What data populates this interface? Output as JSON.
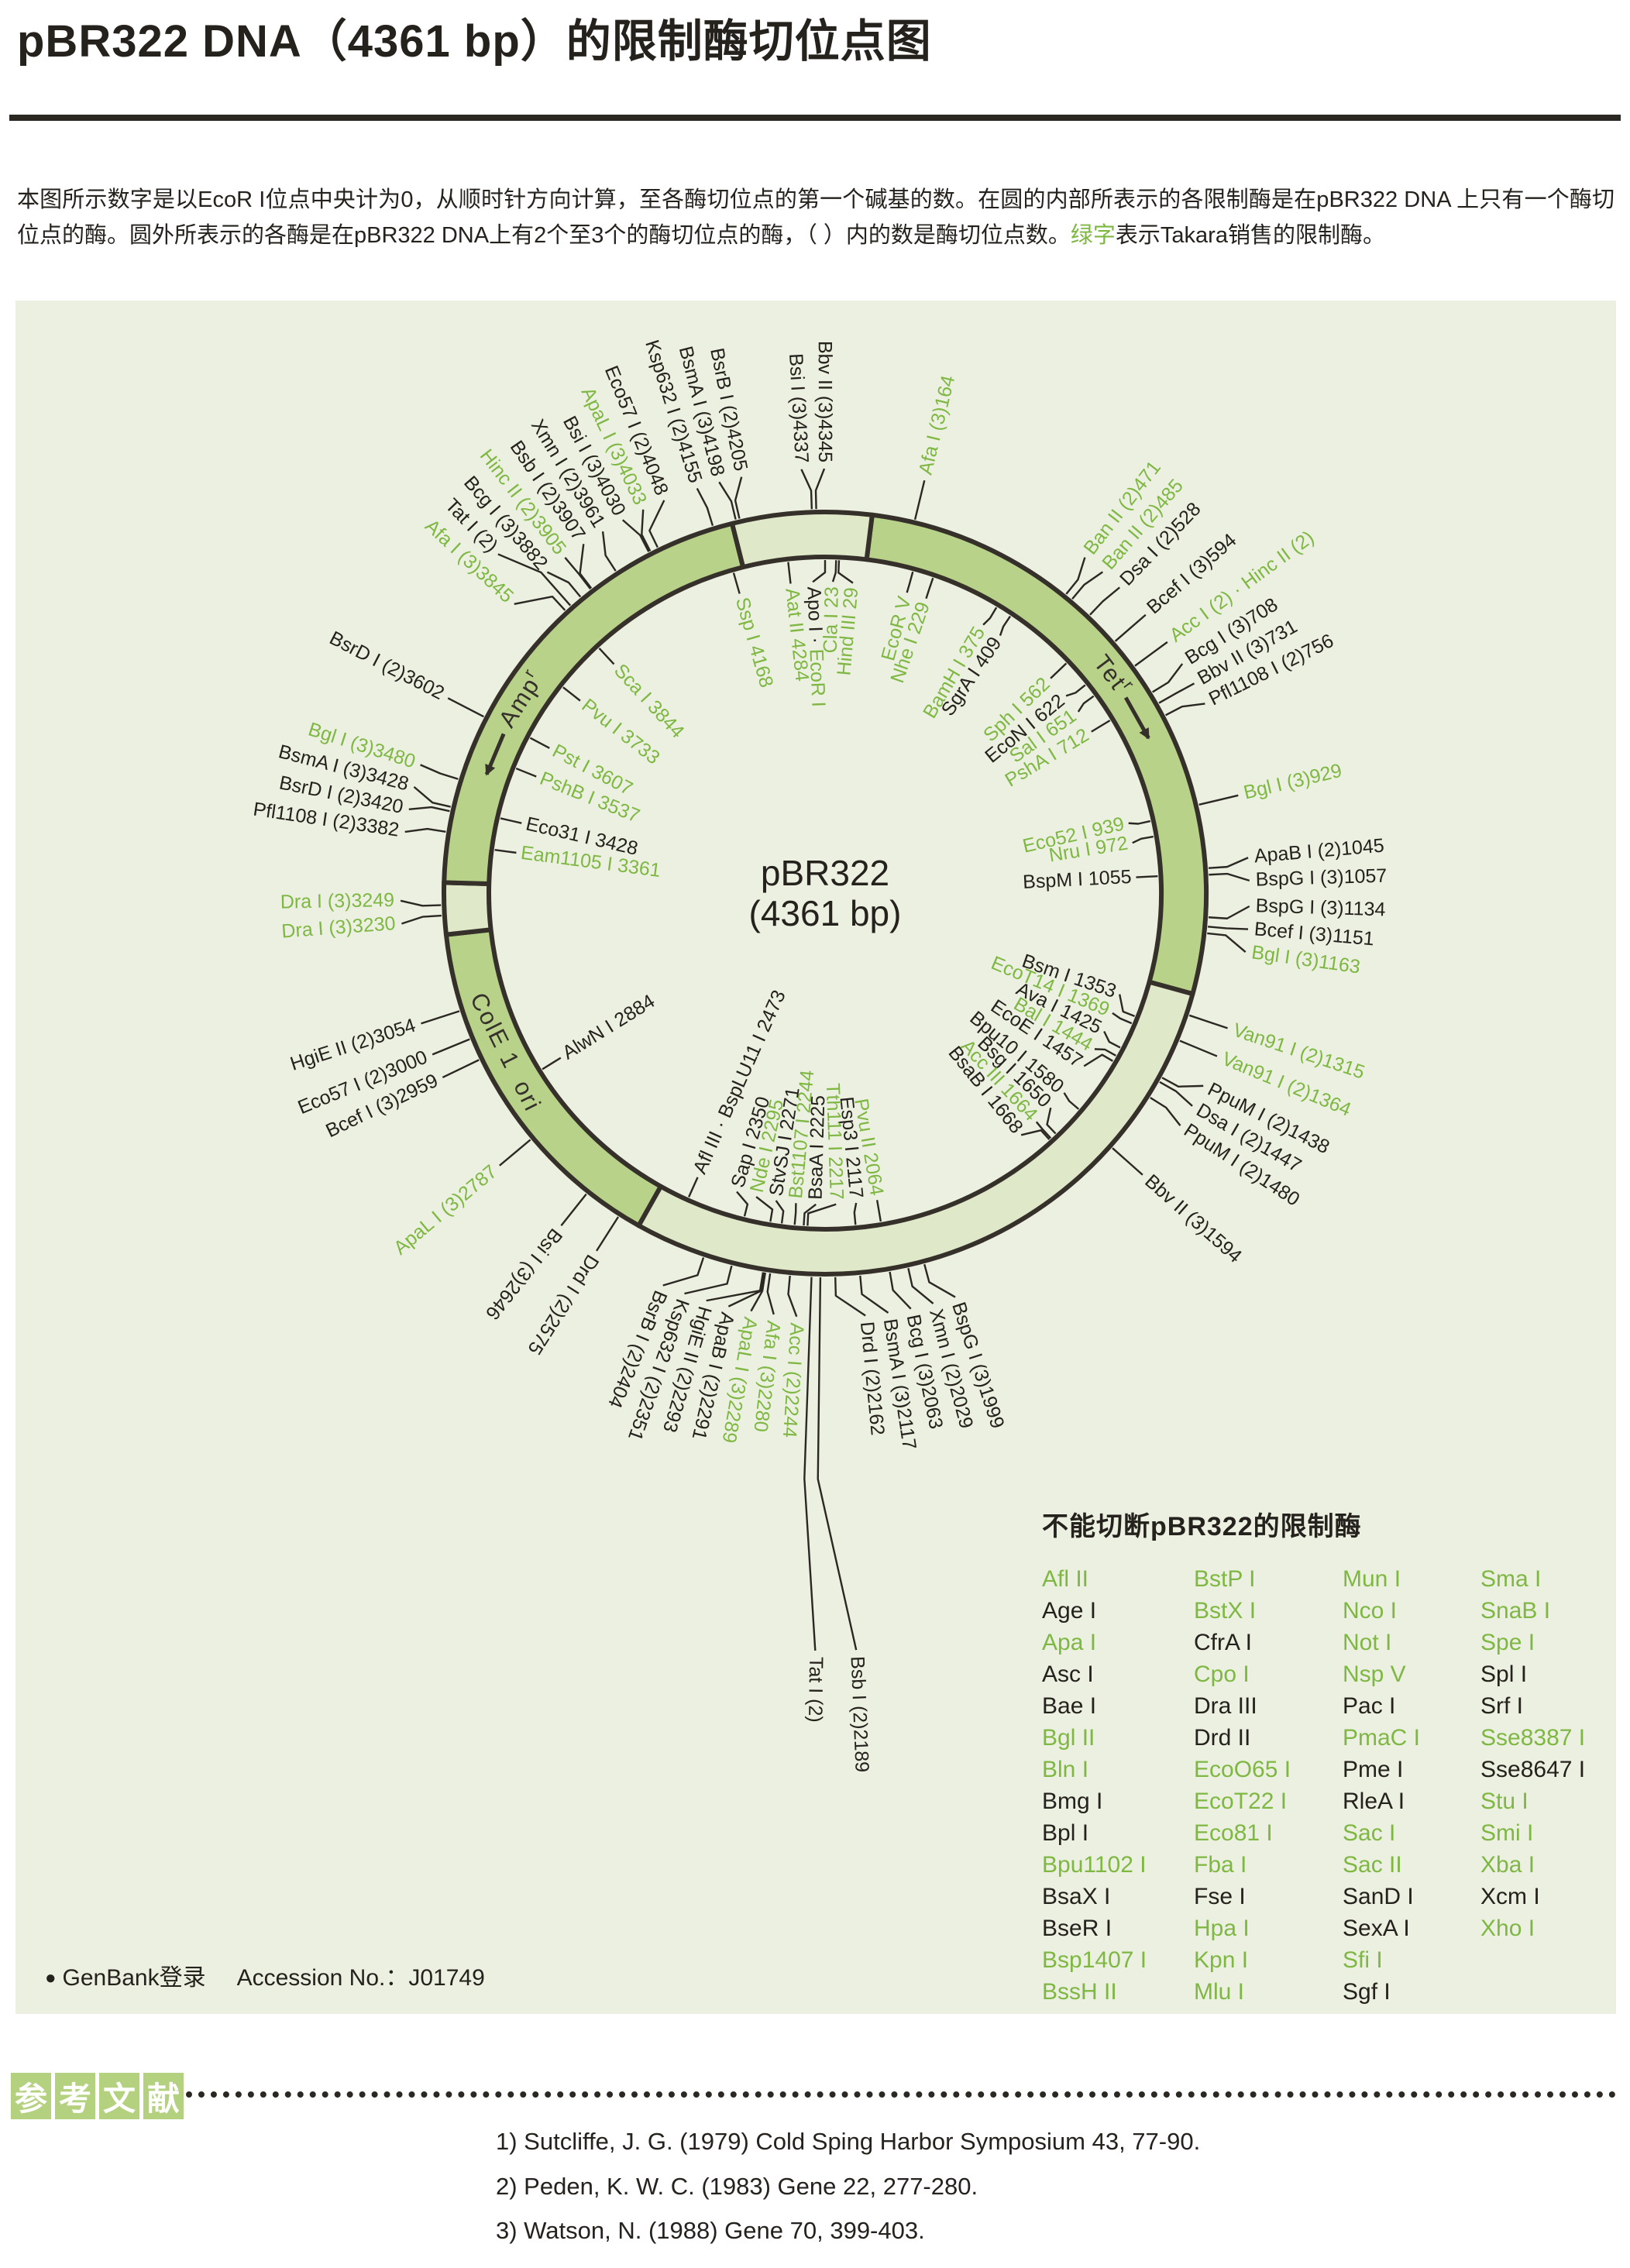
{
  "title": "pBR322 DNA（4361 bp）的限制酶切位点图",
  "intro": {
    "segments": [
      [
        "本图所示数字是以EcoR I位点中央计为0，从顺时针方向计算，至各酶切位点的第一个碱基的数。在圆的内部所表示的各限制酶是在pBR322 DNA 上只有一个酶切位点的酶。圆外所表示的各酶是在pBR322 DNA上有2个至3个的酶切位点的酶，（ ）内的数是酶切位点数。",
        "k"
      ],
      [
        "绿字",
        "g"
      ],
      [
        "表示Takara销售的限制酶。",
        "k"
      ]
    ]
  },
  "colors": {
    "green_text": "#7fb743",
    "black_text": "#25211d",
    "panel": "#ecf0e1",
    "ring_dark": "#b9d28a",
    "ring_light": "#dfe8c8",
    "outline": "#35302a",
    "leader": "#2b2723",
    "heading_box": "#b4d180"
  },
  "plasmid": {
    "name": "pBR322",
    "size_label": "(4361 bp)",
    "total_bp": 4361,
    "segments": [
      {
        "from": 86,
        "to": 1276,
        "tone": "dark"
      },
      {
        "from": 1276,
        "to": 2535,
        "tone": "light"
      },
      {
        "from": 2535,
        "to": 3195,
        "tone": "dark"
      },
      {
        "from": 3195,
        "to": 3290,
        "tone": "light"
      },
      {
        "from": 3290,
        "to": 4190,
        "tone": "dark"
      },
      {
        "from": 4190,
        "to": 4447,
        "tone": "light"
      }
    ],
    "genes": [
      {
        "label": "Tet",
        "sup": "r",
        "bp": 640,
        "arrow_from": 690,
        "arrow_to": 780,
        "flip": false
      },
      {
        "label": "Amp",
        "sup": "r",
        "bp": 3665,
        "arrow_from": 3590,
        "arrow_to": 3505,
        "flip": false
      },
      {
        "label": "ColE 1  ori",
        "sup": "",
        "bp": 2950,
        "flip": true
      }
    ],
    "outer_labels": [
      [
        164,
        [
          [
            "Afa I (3)164",
            "g"
          ]
        ]
      ],
      [
        471,
        [
          [
            "Ban II (2)471",
            "g"
          ]
        ]
      ],
      [
        485,
        [
          [
            "Ban II (2)485",
            "g"
          ]
        ]
      ],
      [
        528,
        [
          [
            "Dsa I (2)528",
            "k"
          ]
        ]
      ],
      [
        594,
        [
          [
            "Bcef I (3)594",
            "k"
          ]
        ]
      ],
      [
        651,
        [
          [
            "Acc I (2) · Hinc II (2)",
            "g"
          ]
        ]
      ],
      [
        708,
        [
          [
            "Bcg I (3)708",
            "k"
          ]
        ]
      ],
      [
        731,
        [
          [
            "Bbv II (3)731",
            "k"
          ]
        ]
      ],
      [
        756,
        [
          [
            "Pfl1108 I (2)756",
            "k"
          ]
        ]
      ],
      [
        929,
        [
          [
            "Bgl I (3)929",
            "g"
          ]
        ]
      ],
      [
        1045,
        [
          [
            "ApaB I (2)1045",
            "k"
          ]
        ]
      ],
      [
        1057,
        [
          [
            "BspG I (3)1057",
            "k"
          ]
        ]
      ],
      [
        1134,
        [
          [
            "BspG I (3)1134",
            "k"
          ]
        ]
      ],
      [
        1151,
        [
          [
            "Bcef I (3)1151",
            "k"
          ]
        ]
      ],
      [
        1163,
        [
          [
            "Bgl I (3)1163",
            "g"
          ]
        ]
      ],
      [
        1315,
        [
          [
            "Van91 I (2)1315",
            "g"
          ]
        ]
      ],
      [
        1364,
        [
          [
            "Van91 I (2)1364",
            "g"
          ]
        ]
      ],
      [
        1438,
        [
          [
            "PpuM I (2)1438",
            "k"
          ]
        ]
      ],
      [
        1447,
        [
          [
            "Dsa I (2)1447",
            "k"
          ]
        ]
      ],
      [
        1480,
        [
          [
            "PpuM I (2)1480",
            "k"
          ]
        ]
      ],
      [
        1594,
        [
          [
            "Bbv II (3)1594",
            "k"
          ]
        ]
      ],
      [
        1999,
        [
          [
            "BspG I (3)1999",
            "k"
          ]
        ]
      ],
      [
        2029,
        [
          [
            "Xmn I (2)2029",
            "k"
          ]
        ]
      ],
      [
        2063,
        [
          [
            "Bcg I (3)2063",
            "k"
          ]
        ]
      ],
      [
        2117,
        [
          [
            "BsmA I (3)2117",
            "k"
          ]
        ]
      ],
      [
        2162,
        [
          [
            "Drd I (2)2162",
            "k"
          ]
        ]
      ],
      [
        2189,
        [
          [
            "Bsb I (2)2189",
            "k"
          ]
        ],
        430
      ],
      [
        2205,
        [
          [
            "Tat I (2)",
            "k"
          ]
        ],
        430
      ],
      [
        2244,
        [
          [
            "Acc I (2)2244",
            "g"
          ]
        ]
      ],
      [
        2280,
        [
          [
            "Afa I (3)2280",
            "g"
          ]
        ]
      ],
      [
        2289,
        [
          [
            "ApaL I (3)2289",
            "g"
          ]
        ]
      ],
      [
        2291,
        [
          [
            "ApaB I (2)2291",
            "k"
          ]
        ]
      ],
      [
        2293,
        [
          [
            "HgiE II (2)2293",
            "k"
          ]
        ]
      ],
      [
        2351,
        [
          [
            "Ksp632 I (2)2351",
            "k"
          ]
        ]
      ],
      [
        2404,
        [
          [
            "BsrB I (2)2404",
            "k"
          ]
        ]
      ],
      [
        2575,
        [
          [
            "Drd I (2)2575",
            "k"
          ]
        ]
      ],
      [
        2646,
        [
          [
            "Bsi I (3)2646",
            "k"
          ]
        ]
      ],
      [
        2787,
        [
          [
            "ApaL I (3)2787",
            "g"
          ]
        ]
      ],
      [
        2959,
        [
          [
            "Bcef I (3)2959",
            "k"
          ]
        ]
      ],
      [
        3000,
        [
          [
            "Eco57 I (2)3000",
            "k"
          ]
        ]
      ],
      [
        3054,
        [
          [
            "HgiE II (2)3054",
            "k"
          ]
        ]
      ],
      [
        3230,
        [
          [
            "Dra I (3)3230",
            "g"
          ]
        ]
      ],
      [
        3249,
        [
          [
            "Dra I (3)3249",
            "g"
          ]
        ]
      ],
      [
        3382,
        [
          [
            "Pfl1108 I (2)3382",
            "k"
          ]
        ]
      ],
      [
        3420,
        [
          [
            "BsrD I (2)3420",
            "k"
          ]
        ]
      ],
      [
        3428,
        [
          [
            "BsmA I (3)3428",
            "k"
          ]
        ]
      ],
      [
        3480,
        [
          [
            "Bgl I (3)3480",
            "g"
          ]
        ]
      ],
      [
        3602,
        [
          [
            "BsrD I (2)3602",
            "k"
          ]
        ]
      ],
      [
        3845,
        [
          [
            "Afa I (3)3845",
            "g"
          ]
        ]
      ],
      [
        3858,
        [
          [
            "Tat I (2)",
            "k"
          ]
        ],
        60
      ],
      [
        3882,
        [
          [
            "Bcg I (3)3882",
            "k"
          ]
        ]
      ],
      [
        3905,
        [
          [
            "Hinc II (2)3905",
            "g"
          ]
        ]
      ],
      [
        3907,
        [
          [
            "Bsb I (2)3907",
            "k"
          ]
        ]
      ],
      [
        3961,
        [
          [
            "Xmn I (2)3961",
            "k"
          ]
        ]
      ],
      [
        4030,
        [
          [
            "Bsi I (3)4030",
            "k"
          ]
        ]
      ],
      [
        4033,
        [
          [
            "ApaL I (3)4033",
            "g"
          ]
        ]
      ],
      [
        4048,
        [
          [
            "Eco57 I (2)4048",
            "k"
          ]
        ]
      ],
      [
        4155,
        [
          [
            "Ksp632 I (2)4155",
            "k"
          ]
        ]
      ],
      [
        4198,
        [
          [
            "BsmA I (3)4198",
            "k"
          ]
        ]
      ],
      [
        4205,
        [
          [
            "BsrB I (2)4205",
            "k"
          ]
        ]
      ],
      [
        4337,
        [
          [
            "Bsi I (3)4337",
            "k"
          ]
        ]
      ],
      [
        4345,
        [
          [
            "Bbv II (3)4345",
            "k"
          ]
        ]
      ]
    ],
    "inner_labels": [
      [
        0,
        [
          [
            "Apo I · ",
            "k"
          ],
          [
            "EcoR I",
            "g"
          ]
        ]
      ],
      [
        23,
        [
          [
            "Cla I 23",
            "g"
          ]
        ]
      ],
      [
        29,
        [
          [
            "Hind III 29",
            "g"
          ]
        ]
      ],
      [
        185,
        [
          [
            "EcoR V",
            "g"
          ]
        ]
      ],
      [
        229,
        [
          [
            "Nhe I 229",
            "g"
          ]
        ]
      ],
      [
        375,
        [
          [
            "BamH I 375",
            "g"
          ]
        ]
      ],
      [
        409,
        [
          [
            "SgrA I 409",
            "k"
          ]
        ]
      ],
      [
        562,
        [
          [
            "Sph I 562",
            "g"
          ]
        ]
      ],
      [
        622,
        [
          [
            "EcoN I 622",
            "k"
          ]
        ]
      ],
      [
        651,
        [
          [
            "Sal I 651",
            "g"
          ]
        ]
      ],
      [
        712,
        [
          [
            "PshA I 712",
            "g"
          ]
        ]
      ],
      [
        939,
        [
          [
            "Eco52 I 939",
            "g"
          ]
        ]
      ],
      [
        972,
        [
          [
            "Nru I 972",
            "g"
          ]
        ]
      ],
      [
        1055,
        [
          [
            "BspM I 1055",
            "k"
          ]
        ]
      ],
      [
        1353,
        [
          [
            "Bsm I 1353",
            "k"
          ]
        ]
      ],
      [
        1369,
        [
          [
            "EcoT14 I 1369",
            "g"
          ]
        ]
      ],
      [
        1425,
        [
          [
            "Ava I 1425",
            "k"
          ]
        ]
      ],
      [
        1444,
        [
          [
            "Bal I 1444",
            "g"
          ]
        ]
      ],
      [
        1457,
        [
          [
            "EcoE I 1457",
            "k"
          ]
        ]
      ],
      [
        1580,
        [
          [
            "Bpu10 I 1580",
            "k"
          ]
        ]
      ],
      [
        1650,
        [
          [
            "Bsg I 1650",
            "k"
          ]
        ]
      ],
      [
        1664,
        [
          [
            "Acc III 1664",
            "g"
          ]
        ]
      ],
      [
        1668,
        [
          [
            "BsaB I 1668",
            "k"
          ]
        ]
      ],
      [
        2064,
        [
          [
            "Pvu II 2064",
            "g"
          ]
        ]
      ],
      [
        2117,
        [
          [
            "Esp3 I 2117",
            "k"
          ]
        ]
      ],
      [
        2217,
        [
          [
            "Tth111 I 2217",
            "g"
          ]
        ]
      ],
      [
        2225,
        [
          [
            "BsaA I 2225",
            "k"
          ]
        ]
      ],
      [
        2244,
        [
          [
            "Bst1107 I 2244",
            "g"
          ]
        ]
      ],
      [
        2271,
        [
          [
            "StvSJ I 2271",
            "k"
          ]
        ]
      ],
      [
        2295,
        [
          [
            "Nde I 2295",
            "g"
          ]
        ]
      ],
      [
        2350,
        [
          [
            "Sap I 2350",
            "k"
          ]
        ]
      ],
      [
        2473,
        [
          [
            "Afl III · BspLU11 I 2473",
            "k"
          ]
        ]
      ],
      [
        2884,
        [
          [
            "AlwN I 2884",
            "k"
          ]
        ]
      ],
      [
        3361,
        [
          [
            "Eam1105 I 3361",
            "g"
          ]
        ]
      ],
      [
        3428,
        [
          [
            "Eco31 I 3428",
            "k"
          ]
        ]
      ],
      [
        3537,
        [
          [
            "PshB I 3537",
            "g"
          ]
        ]
      ],
      [
        3607,
        [
          [
            "Pst I 3607",
            "g"
          ]
        ]
      ],
      [
        3733,
        [
          [
            "Pvu I 3733",
            "g"
          ]
        ]
      ],
      [
        3844,
        [
          [
            "Sca I 3844",
            "g"
          ]
        ]
      ],
      [
        4168,
        [
          [
            "Ssp I 4168",
            "g"
          ]
        ]
      ],
      [
        4284,
        [
          [
            "Aat II 4284",
            "g"
          ]
        ]
      ]
    ]
  },
  "uncut_table": {
    "title": "不能切断pBR322的限制酶",
    "columns": [
      [
        [
          "Afl II",
          "g"
        ],
        [
          "Age I",
          "k"
        ],
        [
          "Apa I",
          "g"
        ],
        [
          "Asc I",
          "k"
        ],
        [
          "Bae I",
          "k"
        ],
        [
          "Bgl II",
          "g"
        ],
        [
          "Bln I",
          "g"
        ],
        [
          "Bmg I",
          "k"
        ],
        [
          "Bpl I",
          "k"
        ],
        [
          "Bpu1102 I",
          "g"
        ],
        [
          "BsaX I",
          "k"
        ],
        [
          "BseR I",
          "k"
        ],
        [
          "Bsp1407 I",
          "g"
        ],
        [
          "BssH II",
          "g"
        ]
      ],
      [
        [
          "BstP I",
          "g"
        ],
        [
          "BstX I",
          "g"
        ],
        [
          "CfrA I",
          "k"
        ],
        [
          "Cpo I",
          "g"
        ],
        [
          "Dra III",
          "k"
        ],
        [
          "Drd II",
          "k"
        ],
        [
          "EcoO65 I",
          "g"
        ],
        [
          "EcoT22 I",
          "g"
        ],
        [
          "Eco81 I",
          "g"
        ],
        [
          "Fba I",
          "g"
        ],
        [
          "Fse I",
          "k"
        ],
        [
          "Hpa I",
          "g"
        ],
        [
          "Kpn I",
          "g"
        ],
        [
          "Mlu I",
          "g"
        ]
      ],
      [
        [
          "Mun I",
          "g"
        ],
        [
          "Nco I",
          "g"
        ],
        [
          "Not I",
          "g"
        ],
        [
          "Nsp V",
          "g"
        ],
        [
          "Pac I",
          "k"
        ],
        [
          "PmaC I",
          "g"
        ],
        [
          "Pme I",
          "k"
        ],
        [
          "RleA I",
          "k"
        ],
        [
          "Sac I",
          "g"
        ],
        [
          "Sac II",
          "g"
        ],
        [
          "SanD I",
          "k"
        ],
        [
          "SexA I",
          "k"
        ],
        [
          "Sfi I",
          "g"
        ],
        [
          "Sgf I",
          "k"
        ]
      ],
      [
        [
          "Sma I",
          "g"
        ],
        [
          "SnaB I",
          "g"
        ],
        [
          "Spe I",
          "g"
        ],
        [
          "Spl I",
          "k"
        ],
        [
          "Srf I",
          "k"
        ],
        [
          "Sse8387 I",
          "g"
        ],
        [
          "Sse8647 I",
          "k"
        ],
        [
          "Stu I",
          "g"
        ],
        [
          "Smi I",
          "g"
        ],
        [
          "Xba I",
          "g"
        ],
        [
          "Xcm I",
          "k"
        ],
        [
          "Xho I",
          "g"
        ]
      ]
    ]
  },
  "genbank": {
    "bullet": "●",
    "label": "GenBank登录",
    "value": "Accession No.：J01749"
  },
  "references": {
    "heading_chars": [
      "参",
      "考",
      "文",
      "献"
    ],
    "items": [
      "1) Sutcliffe, J. G. (1979) Cold Sping Harbor Symposium 43, 77-90.",
      "2) Peden, K. W. C. (1983) Gene 22, 277-280.",
      "3) Watson, N. (1988) Gene 70, 399-403."
    ]
  }
}
